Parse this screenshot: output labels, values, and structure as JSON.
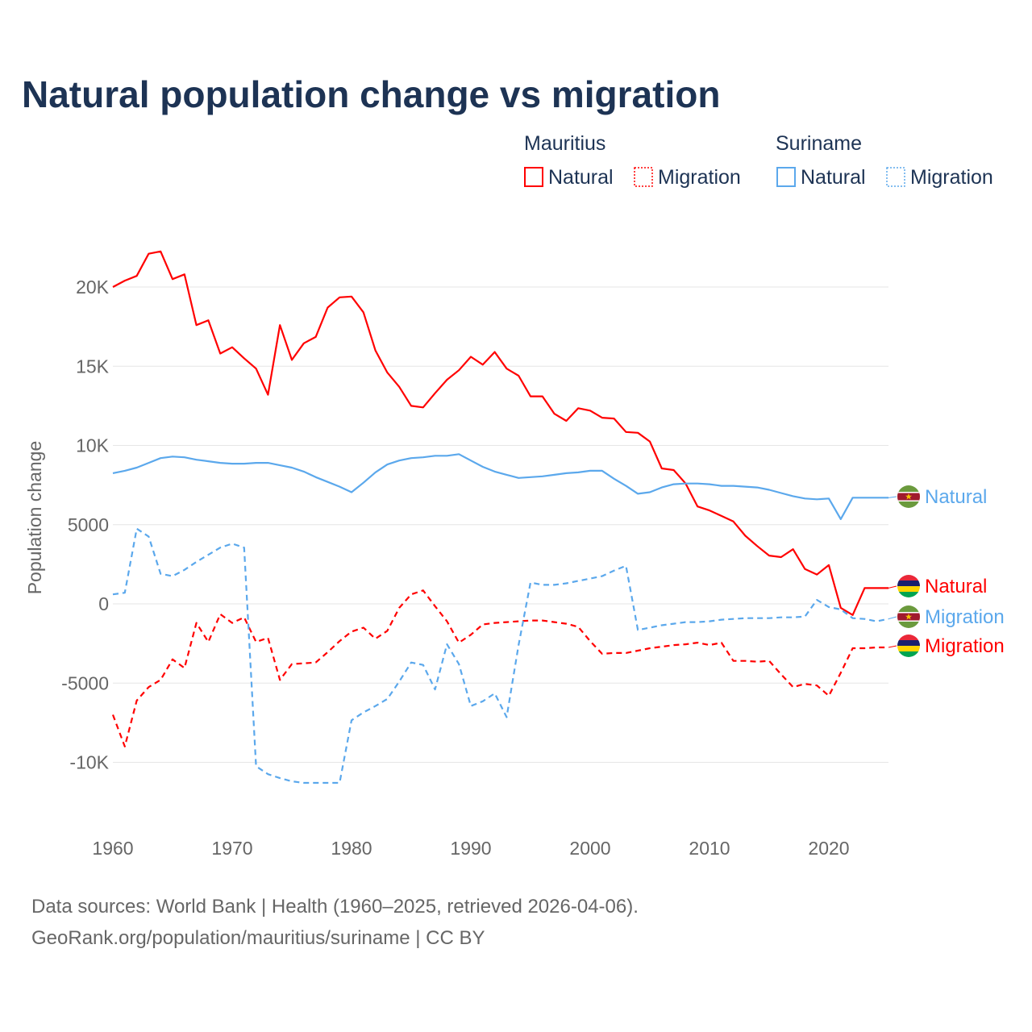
{
  "chart_data": {
    "type": "line",
    "title": "Natural population change vs migration",
    "ylabel": "Population change",
    "xlabel": "",
    "xlim": [
      1960,
      2025
    ],
    "ylim": [
      -13000,
      23500
    ],
    "grid": true,
    "x_ticks": [
      1960,
      1970,
      1980,
      1990,
      2000,
      2010,
      2020
    ],
    "x_tick_labels": [
      "1960",
      "1970",
      "1980",
      "1990",
      "2000",
      "2010",
      "2020"
    ],
    "y_ticks": [
      -10000,
      -5000,
      0,
      5000,
      10000,
      15000,
      20000
    ],
    "y_tick_labels": [
      "-10K",
      "-5000",
      "0",
      "5000",
      "10K",
      "15K",
      "20K"
    ],
    "legend": {
      "placement": "top-right",
      "groups": [
        {
          "name": "Mauritius",
          "items": [
            "Natural",
            "Migration"
          ]
        },
        {
          "name": "Suriname",
          "items": [
            "Natural",
            "Migration"
          ]
        }
      ]
    },
    "start_year": 1960,
    "series": [
      {
        "country": "Mauritius",
        "name": "Natural",
        "color": "#ff0000",
        "dash": false,
        "end_label": "Natural",
        "values": [
          20000,
          20400,
          20700,
          22100,
          22250,
          20500,
          20800,
          17600,
          17900,
          15800,
          16200,
          15500,
          14850,
          13200,
          17600,
          15400,
          16450,
          16850,
          18700,
          19350,
          19400,
          18400,
          16000,
          14600,
          13700,
          12500,
          12400,
          13300,
          14150,
          14750,
          15600,
          15100,
          15900,
          14850,
          14400,
          13100,
          13100,
          12000,
          11550,
          12350,
          12200,
          11750,
          11700,
          10850,
          10800,
          10250,
          8550,
          8450,
          7600,
          6150,
          5900,
          5550,
          5200,
          4300,
          3650,
          3050,
          2950,
          3450,
          2200,
          1850,
          2450,
          -250,
          -700,
          1000,
          1000,
          1000
        ]
      },
      {
        "country": "Mauritius",
        "name": "Migration",
        "color": "#ff0000",
        "dash": true,
        "end_label": "Migration",
        "values": [
          -7000,
          -9000,
          -6100,
          -5250,
          -4800,
          -3500,
          -4050,
          -1200,
          -2400,
          -650,
          -1200,
          -850,
          -2400,
          -2150,
          -4800,
          -3800,
          -3750,
          -3700,
          -3050,
          -2350,
          -1750,
          -1500,
          -2200,
          -1700,
          -250,
          600,
          850,
          -150,
          -1100,
          -2450,
          -1950,
          -1300,
          -1200,
          -1150,
          -1100,
          -1050,
          -1050,
          -1150,
          -1250,
          -1450,
          -2350,
          -3150,
          -3100,
          -3100,
          -2950,
          -2800,
          -2700,
          -2600,
          -2550,
          -2450,
          -2600,
          -2450,
          -3600,
          -3600,
          -3650,
          -3600,
          -4450,
          -5250,
          -5050,
          -5150,
          -5800,
          -4350,
          -2800,
          -2800,
          -2750,
          -2750
        ]
      },
      {
        "country": "Suriname",
        "name": "Natural",
        "color": "#5ba8ec",
        "dash": false,
        "end_label": "Natural",
        "values": [
          8250,
          8400,
          8600,
          8900,
          9200,
          9300,
          9250,
          9100,
          9000,
          8900,
          8850,
          8850,
          8900,
          8900,
          8750,
          8600,
          8350,
          8000,
          7700,
          7400,
          7050,
          7650,
          8300,
          8800,
          9050,
          9200,
          9250,
          9350,
          9350,
          9450,
          9050,
          8650,
          8350,
          8150,
          7950,
          8000,
          8050,
          8150,
          8250,
          8300,
          8400,
          8400,
          7900,
          7450,
          6950,
          7050,
          7350,
          7550,
          7600,
          7600,
          7550,
          7450,
          7450,
          7400,
          7350,
          7200,
          7000,
          6800,
          6650,
          6600,
          6650,
          5350,
          6700,
          6700,
          6700,
          6700
        ]
      },
      {
        "country": "Suriname",
        "name": "Migration",
        "color": "#5ba8ec",
        "dash": true,
        "end_label": "Migration",
        "values": [
          600,
          700,
          4750,
          4250,
          1900,
          1750,
          2150,
          2650,
          3100,
          3550,
          3800,
          3550,
          -10250,
          -10750,
          -11000,
          -11200,
          -11300,
          -11300,
          -11300,
          -11300,
          -7350,
          -6850,
          -6450,
          -6000,
          -4900,
          -3700,
          -3850,
          -5400,
          -2550,
          -3800,
          -6450,
          -6150,
          -5650,
          -7150,
          -2600,
          1350,
          1200,
          1200,
          1300,
          1450,
          1600,
          1750,
          2100,
          2400,
          -1650,
          -1500,
          -1350,
          -1250,
          -1150,
          -1150,
          -1100,
          -1000,
          -950,
          -900,
          -900,
          -900,
          -850,
          -850,
          -800,
          250,
          -200,
          -350,
          -900,
          -950,
          -1100,
          -950
        ]
      }
    ]
  },
  "source": {
    "line1": "Data sources: World Bank | Health (1960–2025, retrieved 2026-04-06).",
    "line2": "GeoRank.org/population/mauritius/suriname | CC BY"
  }
}
